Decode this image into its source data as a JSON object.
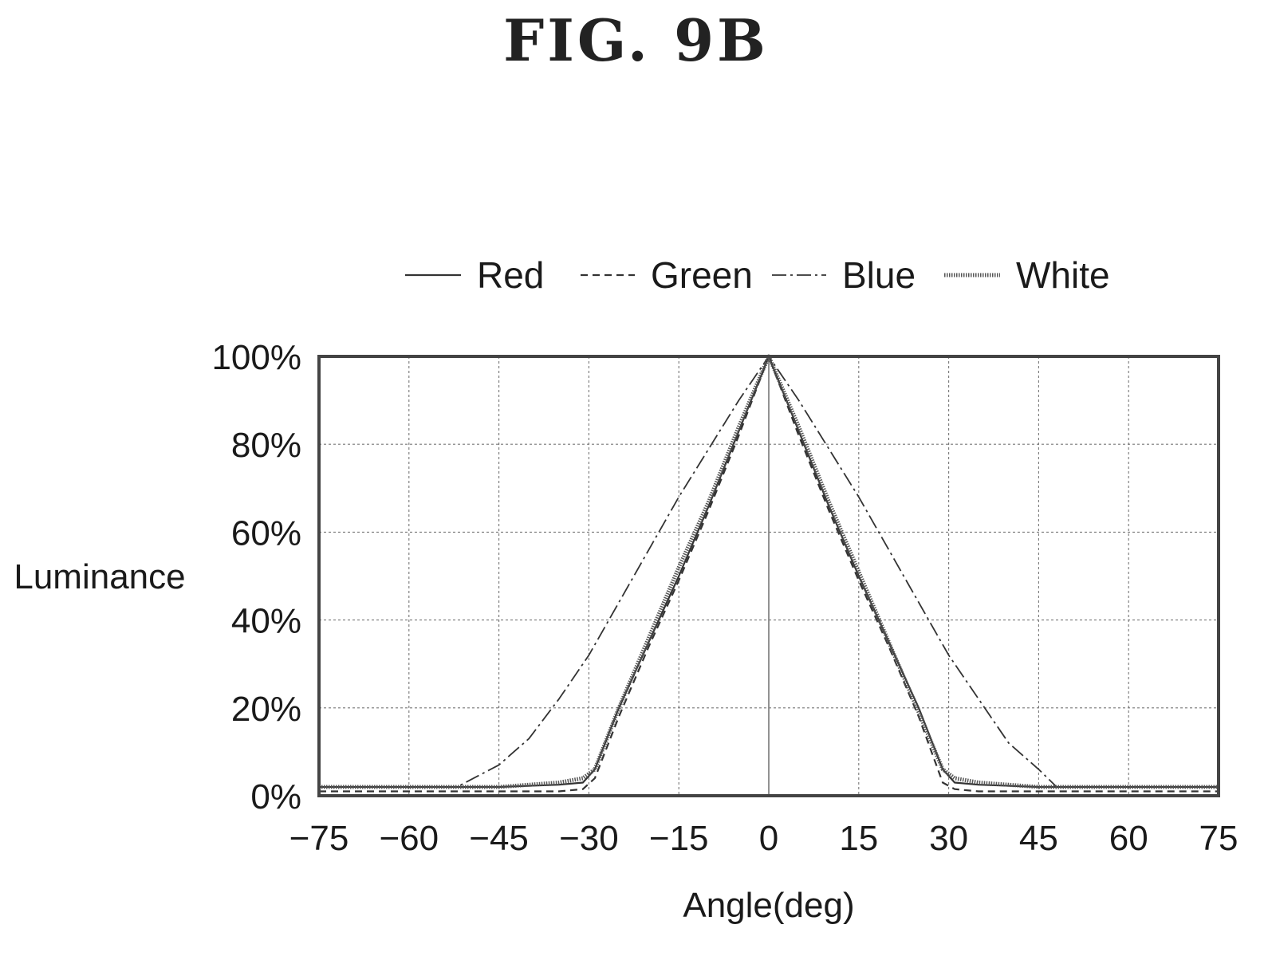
{
  "figure_title": "FIG.  9B",
  "chart_data": {
    "type": "line",
    "title": "",
    "xlabel": "Angle(deg)",
    "ylabel": "Luminance",
    "xlim": [
      -75,
      75
    ],
    "ylim": [
      0,
      100
    ],
    "xticks": [
      -75,
      -60,
      -45,
      -30,
      -15,
      0,
      15,
      30,
      45,
      60,
      75
    ],
    "xtick_labels": [
      "−75",
      "−60",
      "−45",
      "−30",
      "−15",
      "0",
      "15",
      "30",
      "45",
      "60",
      "75"
    ],
    "yticks": [
      0,
      20,
      40,
      60,
      80,
      100
    ],
    "ytick_labels": [
      "0%",
      "20%",
      "40%",
      "60%",
      "80%",
      "100%"
    ],
    "grid": true,
    "legend_position": "top",
    "series": [
      {
        "name": "Red",
        "style": "solid-thin",
        "color": "#333333",
        "x": [
          -75,
          -60,
          -45,
          -35,
          -31,
          -29,
          -25,
          -20,
          -15,
          -10,
          -5,
          0,
          5,
          10,
          15,
          20,
          25,
          29,
          31,
          35,
          45,
          60,
          75
        ],
        "y": [
          2,
          2,
          2,
          2.5,
          3,
          6,
          20,
          35,
          50,
          66,
          83,
          100,
          83,
          66,
          50,
          35,
          20,
          6,
          3,
          2.5,
          2,
          2,
          2
        ]
      },
      {
        "name": "Green",
        "style": "dashed",
        "color": "#333333",
        "x": [
          -75,
          -60,
          -45,
          -35,
          -31,
          -29,
          -25,
          -20,
          -15,
          -10,
          -5,
          0,
          5,
          10,
          15,
          20,
          25,
          29,
          31,
          35,
          45,
          60,
          75
        ],
        "y": [
          1,
          1,
          1,
          1,
          1.5,
          4,
          18,
          34,
          49,
          65,
          82,
          100,
          82,
          65,
          49,
          34,
          18,
          3,
          1.5,
          1,
          1,
          1,
          1
        ]
      },
      {
        "name": "Blue",
        "style": "dashdot",
        "color": "#333333",
        "x": [
          -75,
          -60,
          -52,
          -45,
          -40,
          -35,
          -30,
          -25,
          -20,
          -15,
          -10,
          -5,
          0,
          5,
          10,
          15,
          20,
          25,
          30,
          35,
          40,
          45,
          48,
          60,
          75
        ],
        "y": [
          2,
          2,
          2,
          7,
          13,
          22,
          32,
          44,
          56,
          68,
          79,
          90,
          100,
          90,
          79,
          68,
          56,
          44,
          32,
          22,
          12,
          6,
          2,
          2,
          2
        ]
      },
      {
        "name": "White",
        "style": "solid-thick",
        "color": "#555555",
        "x": [
          -75,
          -60,
          -45,
          -35,
          -31,
          -29,
          -25,
          -20,
          -15,
          -10,
          -5,
          0,
          5,
          10,
          15,
          20,
          25,
          29,
          31,
          35,
          45,
          60,
          75
        ],
        "y": [
          2,
          2,
          2,
          3,
          4,
          6,
          20,
          36,
          52,
          67,
          84,
          100,
          84,
          67,
          51,
          35,
          19,
          6,
          4,
          3,
          2,
          2,
          2
        ]
      }
    ]
  }
}
